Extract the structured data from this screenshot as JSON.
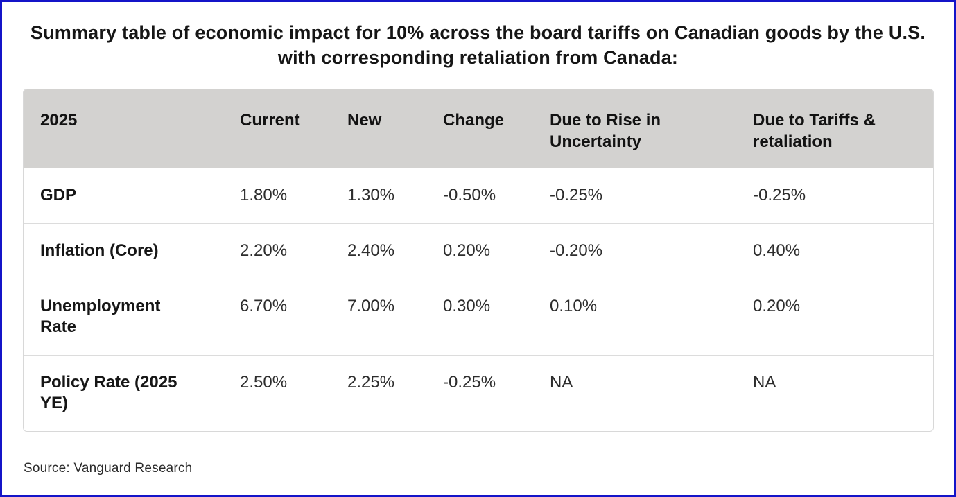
{
  "title": {
    "line1": "Summary table of economic impact for 10% across the board tariffs on Canadian goods by the U.S.",
    "line2": "with corresponding retaliation from Canada:"
  },
  "chart_data": {
    "type": "table",
    "title": "Summary table of economic impact for 10% across the board tariffs on Canadian goods by the U.S. with corresponding retaliation from Canada:",
    "columns": [
      "2025",
      "Current",
      "New",
      "Change",
      "Due to Rise in Uncertainty",
      "Due to Tariffs & retaliation"
    ],
    "rows": [
      [
        "GDP",
        "1.80%",
        "1.30%",
        "-0.50%",
        "-0.25%",
        "-0.25%"
      ],
      [
        "Inflation (Core)",
        "2.20%",
        "2.40%",
        "0.20%",
        "-0.20%",
        "0.40%"
      ],
      [
        "Unemployment Rate",
        "6.70%",
        "7.00%",
        "0.30%",
        "0.10%",
        "0.20%"
      ],
      [
        "Policy Rate (2025 YE)",
        "2.50%",
        "2.25%",
        "-0.25%",
        "NA",
        "NA"
      ]
    ],
    "source": "Source: Vanguard Research"
  },
  "colors": {
    "frame_border": "#1414c8",
    "header_bg": "#d3d2d0",
    "row_divider": "#dcdcdc",
    "table_border": "#d8d8d8"
  }
}
